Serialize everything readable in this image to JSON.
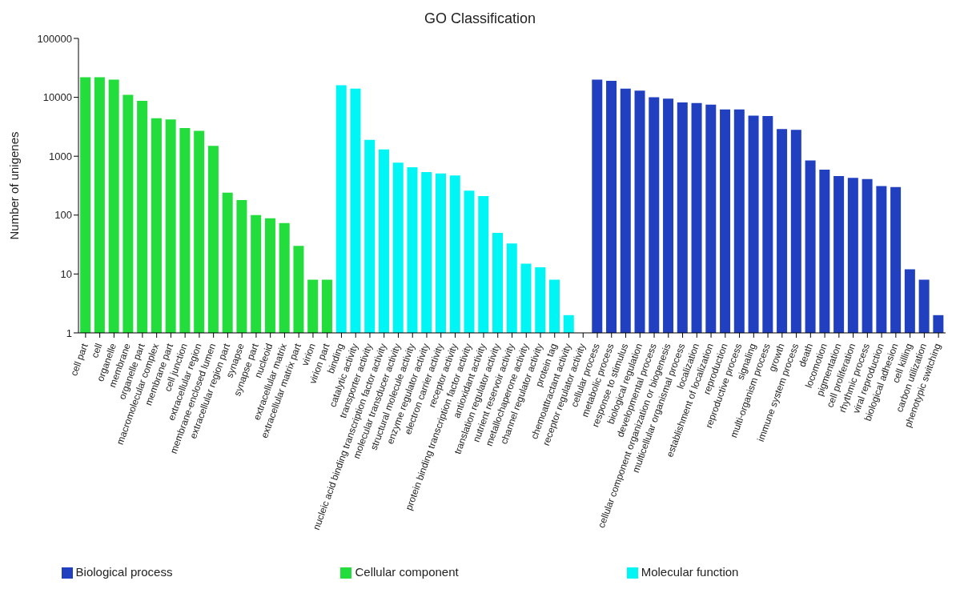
{
  "chart_data": {
    "type": "bar",
    "title": "GO Classification",
    "ylabel": "Number of unigenes",
    "categories": [
      "cell part",
      "cell",
      "organelle",
      "membrane",
      "organelle part",
      "macromolecular complex",
      "membrane part",
      "cell junction",
      "extracellular region",
      "membrane-enclosed lumen",
      "extracellular region part",
      "synapse",
      "synapse part",
      "nucleoid",
      "extracellular matrix",
      "extracellular matrix part",
      "virion",
      "virion part",
      "binding",
      "catalytic activity",
      "transporter activity",
      "nucleic acid binding transcription factor activity",
      "molecular transducer activity",
      "structural molecule activity",
      "enzyme regulator activity",
      "electron carrier activity",
      "receptor activity",
      "protein binding transcription factor activity",
      "antioxidant activity",
      "translation regulator activity",
      "nutrient reservoir activity",
      "metallochaperone activity",
      "channel regulator activity",
      "protein tag",
      "chemoattractant activity",
      "receptor regulator activity",
      "cellular process",
      "metabolic process",
      "response to stimulus",
      "biological regulation",
      "developmental process",
      "cellular component organization or biogenesis",
      "multicellular organismal process",
      "localization",
      "establishment of localization",
      "reproduction",
      "reproductive process",
      "signaling",
      "multi-organism process",
      "growth",
      "immune system process",
      "death",
      "locomotion",
      "pigmentation",
      "cell proliferation",
      "rhythmic process",
      "viral reproduction",
      "biological adhesion",
      "cell killing",
      "carbon utilization",
      "phenotypic switching"
    ],
    "series": [
      {
        "name": "Cellular component",
        "color": "#22dd3c",
        "values": [
          22000,
          22000,
          20000,
          11000,
          8700,
          4400,
          4200,
          3000,
          2700,
          1500,
          240,
          180,
          100,
          88,
          73,
          30,
          8,
          8,
          null,
          null,
          null,
          null,
          null,
          null,
          null,
          null,
          null,
          null,
          null,
          null,
          null,
          null,
          null,
          null,
          null,
          null,
          null,
          null,
          null,
          null,
          null,
          null,
          null,
          null,
          null,
          null,
          null,
          null,
          null,
          null,
          null,
          null,
          null,
          null,
          null,
          null,
          null,
          null,
          null,
          null,
          null
        ]
      },
      {
        "name": "Molecular function",
        "color": "#00f5f5",
        "values": [
          null,
          null,
          null,
          null,
          null,
          null,
          null,
          null,
          null,
          null,
          null,
          null,
          null,
          null,
          null,
          null,
          null,
          null,
          16000,
          14000,
          1900,
          1300,
          780,
          650,
          540,
          510,
          470,
          260,
          210,
          50,
          33,
          15,
          13,
          8,
          2,
          1,
          null,
          null,
          null,
          null,
          null,
          null,
          null,
          null,
          null,
          null,
          null,
          null,
          null,
          null,
          null,
          null,
          null,
          null,
          null,
          null,
          null,
          null,
          null,
          null,
          null
        ]
      },
      {
        "name": "Biological process",
        "color": "#2040c0",
        "values": [
          null,
          null,
          null,
          null,
          null,
          null,
          null,
          null,
          null,
          null,
          null,
          null,
          null,
          null,
          null,
          null,
          null,
          null,
          null,
          null,
          null,
          null,
          null,
          null,
          null,
          null,
          null,
          null,
          null,
          null,
          null,
          null,
          null,
          null,
          null,
          null,
          20000,
          19000,
          14000,
          13000,
          10000,
          9500,
          8200,
          8000,
          7500,
          6200,
          6200,
          4900,
          4800,
          2900,
          2800,
          850,
          590,
          460,
          430,
          410,
          310,
          300,
          12,
          8,
          2
        ]
      }
    ],
    "ylim": [
      1,
      100000
    ],
    "yticks": [
      1,
      10,
      100,
      1000,
      10000,
      100000
    ],
    "log": true,
    "grid": false,
    "legend": "bottom"
  }
}
